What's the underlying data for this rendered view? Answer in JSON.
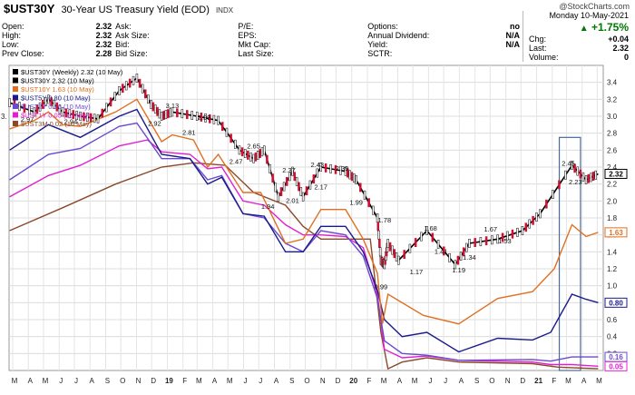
{
  "header": {
    "symbol": "$UST30Y",
    "name": "30-Year US Treasury Yield (EOD)",
    "exchange": "INDX",
    "credit": "@StockCharts.com",
    "quote_rows": [
      [
        [
          "Open:",
          "2.32"
        ],
        [
          "Ask:",
          ""
        ],
        [
          "P/E:",
          ""
        ],
        [
          "Options:",
          "no"
        ]
      ],
      [
        [
          "High:",
          "2.32"
        ],
        [
          "Ask Size:",
          ""
        ],
        [
          "EPS:",
          ""
        ],
        [
          "Annual Dividend:",
          "N/A"
        ]
      ],
      [
        [
          "Low:",
          "2.32"
        ],
        [
          "Bid:",
          ""
        ],
        [
          "Mkt Cap:",
          ""
        ],
        [
          "Yield:",
          "N/A"
        ]
      ],
      [
        [
          "Prev Close:",
          "2.28"
        ],
        [
          "Bid Size:",
          ""
        ],
        [
          "Last Size:",
          ""
        ],
        [
          "SCTR:",
          ""
        ]
      ]
    ],
    "date": "Monday  10-May-2021",
    "change_pct": "+1.75%",
    "right_rows": [
      [
        "Chg:",
        "+0.04"
      ],
      [
        "Last:",
        "2.32"
      ],
      [
        "Volume:",
        "0"
      ]
    ]
  },
  "chart_data": {
    "type": "line",
    "ylim": [
      0,
      3.6
    ],
    "y_ticks": [
      0.2,
      0.4,
      0.6,
      0.8,
      1.0,
      1.2,
      1.4,
      1.6,
      1.8,
      2.0,
      2.2,
      2.4,
      2.6,
      2.8,
      3.0,
      3.2,
      3.4
    ],
    "y_tick_labels": [
      "0.2",
      "0.4",
      "0.6",
      "0.8",
      "1.0",
      "1.2",
      "1.4",
      "1.6",
      "1.8",
      "2.0",
      "2.2",
      "2.4",
      "2.6",
      "2.8",
      "3.0",
      "3.2",
      "3.4"
    ],
    "x_labels": [
      "M",
      "A",
      "M",
      "J",
      "J",
      "A",
      "S",
      "O",
      "N",
      "D",
      "19",
      "F",
      "M",
      "A",
      "M",
      "J",
      "J",
      "A",
      "S",
      "O",
      "N",
      "D",
      "20",
      "F",
      "M",
      "A",
      "M",
      "J",
      "J",
      "A",
      "S",
      "O",
      "N",
      "D",
      "21",
      "F",
      "M",
      "A",
      "M"
    ],
    "x_start": "2018-03-01",
    "x_end": "2021-05-20",
    "legend": [
      {
        "label": "$UST30Y (Weekly) 2.32 (10 May)",
        "color": "#000000"
      },
      {
        "label": "$UST30Y 2.32 (10 May)",
        "color": "#000000"
      },
      {
        "label": "$UST10Y 1.63 (10 May)",
        "color": "#e07020"
      },
      {
        "label": "$UST5Y 0.80 (10 May)",
        "color": "#1a1a8c"
      },
      {
        "label": "$UST2Y 0.16 (10 May)",
        "color": "#6a4ad0"
      },
      {
        "label": "$UST1Y 0.05 (10 May)",
        "color": "#e020d0"
      },
      {
        "label": "$UST3M 0.02 (10 May)",
        "color": "#8a4a2a"
      }
    ],
    "left_axis_marker": "3.",
    "series": [
      {
        "name": "$UST30Y",
        "color": "#000000",
        "points": [
          [
            "2018-03-02",
            3.16
          ],
          [
            "2018-04-20",
            3.05
          ],
          [
            "2018-05-18",
            3.2
          ],
          [
            "2018-06-15",
            3.05
          ],
          [
            "2018-07-20",
            3.0
          ],
          [
            "2018-08-24",
            2.97
          ],
          [
            "2018-10-05",
            3.3
          ],
          [
            "2018-11-09",
            3.45
          ],
          [
            "2018-12-07",
            3.14
          ],
          [
            "2018-12-28",
            3.0
          ],
          [
            "2019-01-18",
            3.05
          ],
          [
            "2019-03-08",
            3.0
          ],
          [
            "2019-04-19",
            2.95
          ],
          [
            "2019-05-31",
            2.6
          ],
          [
            "2019-06-28",
            2.5
          ],
          [
            "2019-07-19",
            2.6
          ],
          [
            "2019-08-16",
            2.05
          ],
          [
            "2019-09-13",
            2.35
          ],
          [
            "2019-10-04",
            2.05
          ],
          [
            "2019-11-08",
            2.4
          ],
          [
            "2019-12-27",
            2.35
          ],
          [
            "2020-01-17",
            2.25
          ],
          [
            "2020-02-28",
            1.8
          ],
          [
            "2020-03-06",
            1.3
          ],
          [
            "2020-03-13",
            1.25
          ],
          [
            "2020-03-20",
            1.5
          ],
          [
            "2020-04-10",
            1.3
          ],
          [
            "2020-06-05",
            1.65
          ],
          [
            "2020-07-31",
            1.25
          ],
          [
            "2020-08-28",
            1.5
          ],
          [
            "2020-10-23",
            1.55
          ],
          [
            "2020-12-11",
            1.65
          ],
          [
            "2021-01-15",
            1.85
          ],
          [
            "2021-03-19",
            2.42
          ],
          [
            "2021-04-16",
            2.25
          ],
          [
            "2021-05-10",
            2.32
          ]
        ]
      },
      {
        "name": "$UST10Y",
        "color": "#e07020",
        "points": [
          [
            "2018-03-02",
            2.85
          ],
          [
            "2018-04-20",
            2.95
          ],
          [
            "2018-05-18",
            3.05
          ],
          [
            "2018-06-15",
            2.9
          ],
          [
            "2018-07-20",
            2.88
          ],
          [
            "2018-09-28",
            3.05
          ],
          [
            "2018-11-09",
            3.2
          ],
          [
            "2018-12-28",
            2.7
          ],
          [
            "2019-01-18",
            2.78
          ],
          [
            "2019-03-01",
            2.72
          ],
          [
            "2019-03-29",
            2.4
          ],
          [
            "2019-04-19",
            2.55
          ],
          [
            "2019-06-07",
            2.1
          ],
          [
            "2019-07-12",
            2.1
          ],
          [
            "2019-08-30",
            1.5
          ],
          [
            "2019-10-04",
            1.55
          ],
          [
            "2019-11-08",
            1.9
          ],
          [
            "2019-12-27",
            1.9
          ],
          [
            "2020-01-31",
            1.55
          ],
          [
            "2020-02-28",
            1.15
          ],
          [
            "2020-03-09",
            0.55
          ],
          [
            "2020-03-20",
            0.9
          ],
          [
            "2020-05-29",
            0.65
          ],
          [
            "2020-08-07",
            0.55
          ],
          [
            "2020-10-23",
            0.85
          ],
          [
            "2020-12-31",
            0.93
          ],
          [
            "2021-02-12",
            1.2
          ],
          [
            "2021-03-19",
            1.72
          ],
          [
            "2021-04-16",
            1.58
          ],
          [
            "2021-05-10",
            1.63
          ]
        ]
      },
      {
        "name": "$UST5Y",
        "color": "#1a1a8c",
        "points": [
          [
            "2018-03-02",
            2.6
          ],
          [
            "2018-05-18",
            2.9
          ],
          [
            "2018-07-20",
            2.75
          ],
          [
            "2018-10-05",
            3.0
          ],
          [
            "2018-11-09",
            3.08
          ],
          [
            "2018-12-28",
            2.55
          ],
          [
            "2019-02-22",
            2.5
          ],
          [
            "2019-03-29",
            2.2
          ],
          [
            "2019-04-26",
            2.28
          ],
          [
            "2019-06-07",
            1.85
          ],
          [
            "2019-07-19",
            1.82
          ],
          [
            "2019-08-30",
            1.4
          ],
          [
            "2019-10-04",
            1.4
          ],
          [
            "2019-11-08",
            1.7
          ],
          [
            "2019-12-27",
            1.7
          ],
          [
            "2020-01-31",
            1.4
          ],
          [
            "2020-02-28",
            0.95
          ],
          [
            "2020-03-13",
            0.6
          ],
          [
            "2020-04-17",
            0.4
          ],
          [
            "2020-06-05",
            0.45
          ],
          [
            "2020-08-07",
            0.22
          ],
          [
            "2020-10-23",
            0.38
          ],
          [
            "2020-12-31",
            0.36
          ],
          [
            "2021-02-05",
            0.45
          ],
          [
            "2021-03-19",
            0.9
          ],
          [
            "2021-04-16",
            0.84
          ],
          [
            "2021-05-10",
            0.8
          ]
        ]
      },
      {
        "name": "$UST2Y",
        "color": "#6a4ad0",
        "points": [
          [
            "2018-03-02",
            2.25
          ],
          [
            "2018-05-18",
            2.55
          ],
          [
            "2018-07-20",
            2.62
          ],
          [
            "2018-10-05",
            2.88
          ],
          [
            "2018-11-09",
            2.92
          ],
          [
            "2018-12-28",
            2.5
          ],
          [
            "2019-02-22",
            2.5
          ],
          [
            "2019-03-29",
            2.25
          ],
          [
            "2019-04-26",
            2.3
          ],
          [
            "2019-06-07",
            1.85
          ],
          [
            "2019-07-19",
            1.8
          ],
          [
            "2019-08-30",
            1.5
          ],
          [
            "2019-10-04",
            1.4
          ],
          [
            "2019-11-08",
            1.65
          ],
          [
            "2019-12-27",
            1.6
          ],
          [
            "2020-01-31",
            1.35
          ],
          [
            "2020-02-28",
            0.85
          ],
          [
            "2020-03-13",
            0.35
          ],
          [
            "2020-04-17",
            0.2
          ],
          [
            "2020-06-05",
            0.18
          ],
          [
            "2020-08-07",
            0.12
          ],
          [
            "2020-12-31",
            0.13
          ],
          [
            "2021-02-05",
            0.11
          ],
          [
            "2021-03-19",
            0.16
          ],
          [
            "2021-05-10",
            0.16
          ]
        ]
      },
      {
        "name": "$UST1Y",
        "color": "#e020d0",
        "points": [
          [
            "2018-03-02",
            2.05
          ],
          [
            "2018-05-18",
            2.3
          ],
          [
            "2018-07-20",
            2.42
          ],
          [
            "2018-10-05",
            2.65
          ],
          [
            "2018-11-30",
            2.72
          ],
          [
            "2018-12-28",
            2.58
          ],
          [
            "2019-02-22",
            2.55
          ],
          [
            "2019-03-29",
            2.38
          ],
          [
            "2019-04-26",
            2.4
          ],
          [
            "2019-06-07",
            2.0
          ],
          [
            "2019-07-19",
            1.95
          ],
          [
            "2019-08-30",
            1.72
          ],
          [
            "2019-10-04",
            1.6
          ],
          [
            "2019-11-08",
            1.6
          ],
          [
            "2019-12-27",
            1.58
          ],
          [
            "2020-01-31",
            1.45
          ],
          [
            "2020-02-28",
            0.9
          ],
          [
            "2020-03-13",
            0.25
          ],
          [
            "2020-04-17",
            0.15
          ],
          [
            "2020-06-05",
            0.17
          ],
          [
            "2020-08-07",
            0.12
          ],
          [
            "2020-12-31",
            0.1
          ],
          [
            "2021-02-05",
            0.07
          ],
          [
            "2021-03-19",
            0.07
          ],
          [
            "2021-05-10",
            0.05
          ]
        ]
      },
      {
        "name": "$UST3M",
        "color": "#8a4a2a",
        "points": [
          [
            "2018-03-02",
            1.65
          ],
          [
            "2018-06-15",
            1.92
          ],
          [
            "2018-09-28",
            2.2
          ],
          [
            "2018-12-28",
            2.4
          ],
          [
            "2019-03-01",
            2.45
          ],
          [
            "2019-05-03",
            2.42
          ],
          [
            "2019-06-28",
            2.1
          ],
          [
            "2019-08-30",
            1.95
          ],
          [
            "2019-10-04",
            1.7
          ],
          [
            "2019-11-08",
            1.55
          ],
          [
            "2019-12-27",
            1.55
          ],
          [
            "2020-02-14",
            1.55
          ],
          [
            "2020-03-06",
            0.45
          ],
          [
            "2020-03-20",
            0.02
          ],
          [
            "2020-04-17",
            0.1
          ],
          [
            "2020-06-05",
            0.15
          ],
          [
            "2020-08-07",
            0.1
          ],
          [
            "2020-12-31",
            0.08
          ],
          [
            "2021-02-19",
            0.04
          ],
          [
            "2021-05-10",
            0.02
          ]
        ]
      }
    ],
    "last_value_tags": [
      {
        "value": 2.32,
        "label": "2.32",
        "color": "#000000"
      },
      {
        "value": 1.63,
        "label": "1.63",
        "color": "#e07020"
      },
      {
        "value": 0.8,
        "label": "0.80",
        "color": "#1a1a8c"
      },
      {
        "value": 0.16,
        "label": "0.16",
        "color": "#6a4ad0"
      },
      {
        "value": 0.05,
        "label": "0.05",
        "color": "#e020d0"
      }
    ],
    "annotations": [
      {
        "date": "2018-04-06",
        "value": 2.97,
        "label": "2.97"
      },
      {
        "date": "2018-07-01",
        "value": 2.94,
        "label": "2.94"
      },
      {
        "date": "2018-12-14",
        "value": 2.92,
        "label": "2.92"
      },
      {
        "date": "2019-01-18",
        "value": 3.13,
        "label": "3.13"
      },
      {
        "date": "2019-02-20",
        "value": 2.81,
        "label": "2.81"
      },
      {
        "date": "2019-03-22",
        "value": 2.99,
        "label": "2.99"
      },
      {
        "date": "2019-05-24",
        "value": 2.47,
        "label": "2.47"
      },
      {
        "date": "2019-06-28",
        "value": 2.65,
        "label": "2.65"
      },
      {
        "date": "2019-07-26",
        "value": 1.94,
        "label": "1.94"
      },
      {
        "date": "2019-09-06",
        "value": 2.37,
        "label": "2.37"
      },
      {
        "date": "2019-09-13",
        "value": 2.01,
        "label": "2.01"
      },
      {
        "date": "2019-11-01",
        "value": 2.43,
        "label": "2.43"
      },
      {
        "date": "2019-11-08",
        "value": 2.17,
        "label": "2.17"
      },
      {
        "date": "2019-12-20",
        "value": 2.39,
        "label": "2.39"
      },
      {
        "date": "2020-01-17",
        "value": 1.99,
        "label": "1.99"
      },
      {
        "date": "2020-03-13",
        "value": 1.78,
        "label": "1.78"
      },
      {
        "date": "2020-03-06",
        "value": 0.99,
        "label": "0.99"
      },
      {
        "date": "2020-05-15",
        "value": 1.17,
        "label": "1.17"
      },
      {
        "date": "2020-06-12",
        "value": 1.68,
        "label": "1.68"
      },
      {
        "date": "2020-07-03",
        "value": 1.41,
        "label": "1.41"
      },
      {
        "date": "2020-08-07",
        "value": 1.19,
        "label": "1.19"
      },
      {
        "date": "2020-08-28",
        "value": 1.34,
        "label": "1.34"
      },
      {
        "date": "2020-10-09",
        "value": 1.67,
        "label": "1.67"
      },
      {
        "date": "2020-11-06",
        "value": 1.53,
        "label": "1.53"
      },
      {
        "date": "2021-03-12",
        "value": 2.45,
        "label": "2.45"
      },
      {
        "date": "2021-03-26",
        "value": 2.23,
        "label": "2.23"
      }
    ],
    "highlight": {
      "from": "2021-02-22",
      "to": "2021-04-05",
      "y_from": 0,
      "y_to": 2.75
    },
    "grid": true,
    "legend_placement": "top-left"
  }
}
